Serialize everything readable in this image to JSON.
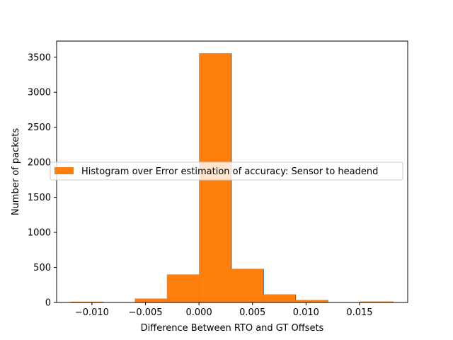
{
  "chart_data": {
    "type": "bar",
    "subtype": "histogram",
    "xlabel": "Difference Between RTO and GT Offsets",
    "ylabel": "Number of packets",
    "xlim": [
      -0.0133,
      0.0195
    ],
    "ylim": [
      0,
      3730
    ],
    "xticks": [
      -0.01,
      -0.005,
      0.0,
      0.005,
      0.01,
      0.015
    ],
    "xtick_labels": [
      "−0.010",
      "−0.005",
      "0.000",
      "0.005",
      "0.010",
      "0.015"
    ],
    "yticks": [
      0,
      500,
      1000,
      1500,
      2000,
      2500,
      3000,
      3500
    ],
    "ytick_labels": [
      "0",
      "500",
      "1000",
      "1500",
      "2000",
      "2500",
      "3000",
      "3500"
    ],
    "grid": false,
    "legend_position": "center-left",
    "bin_edges": [
      -0.012,
      -0.009,
      -0.006,
      -0.003,
      0.0,
      0.003,
      0.006,
      0.009,
      0.012,
      0.015,
      0.0181
    ],
    "series": [
      {
        "name": "Histogram over Error estimation of accuracy: Sensor to headend",
        "color": "#ff7f0e",
        "values": [
          10,
          0,
          55,
          400,
          3555,
          480,
          115,
          35,
          0,
          12
        ]
      }
    ]
  }
}
